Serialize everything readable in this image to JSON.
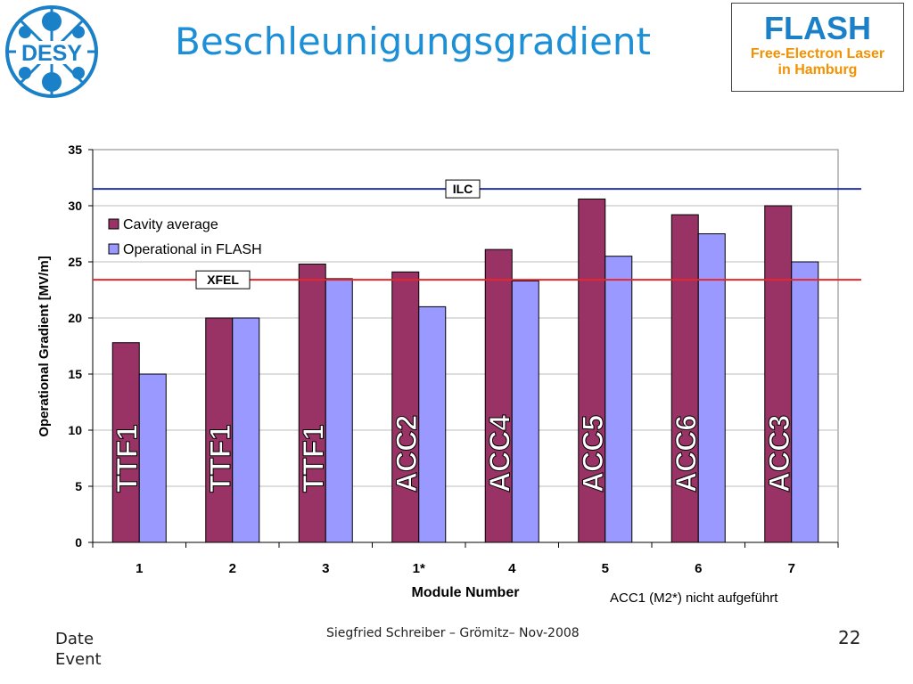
{
  "header": {
    "title": "Beschleunigungsgradient",
    "logo_text": "DESY",
    "flash_title": "FLASH",
    "flash_subtitle_line1": "Free-Electron Laser",
    "flash_subtitle_line2": "in Hamburg"
  },
  "chart_data": {
    "type": "bar",
    "title": "",
    "xlabel": "Module Number",
    "ylabel": "Operational Gradient [MV/m]",
    "ylim": [
      0,
      35
    ],
    "yticks": [
      0,
      5,
      10,
      15,
      20,
      25,
      30,
      35
    ],
    "grid": true,
    "legend_position": "top-left",
    "categories": [
      "1",
      "2",
      "3",
      "1*",
      "4",
      "5",
      "6",
      "7"
    ],
    "bar_labels": [
      "TTF1",
      "TTF1",
      "TTF1",
      "ACC2",
      "ACC4",
      "ACC5",
      "ACC6",
      "ACC3"
    ],
    "series": [
      {
        "name": "Cavity average",
        "color": "#993366",
        "values": [
          17.8,
          20.0,
          24.8,
          24.1,
          26.1,
          30.6,
          29.2,
          30.0
        ]
      },
      {
        "name": "Operational in FLASH",
        "color": "#9999ff",
        "values": [
          15.0,
          20.0,
          23.5,
          21.0,
          23.3,
          25.5,
          27.5,
          25.0
        ]
      }
    ],
    "reference_lines": [
      {
        "label": "ILC",
        "value": 31.5,
        "color": "#2233aa"
      },
      {
        "label": "XFEL",
        "value": 23.4,
        "color": "#e8262c"
      }
    ],
    "note": "ACC1 (M2*) nicht aufgeführt"
  },
  "footer": {
    "date_label": "Date",
    "event_label": "Event",
    "center_text": "Siegfried Schreiber – Grömitz– Nov-2008",
    "page_number": "22"
  }
}
